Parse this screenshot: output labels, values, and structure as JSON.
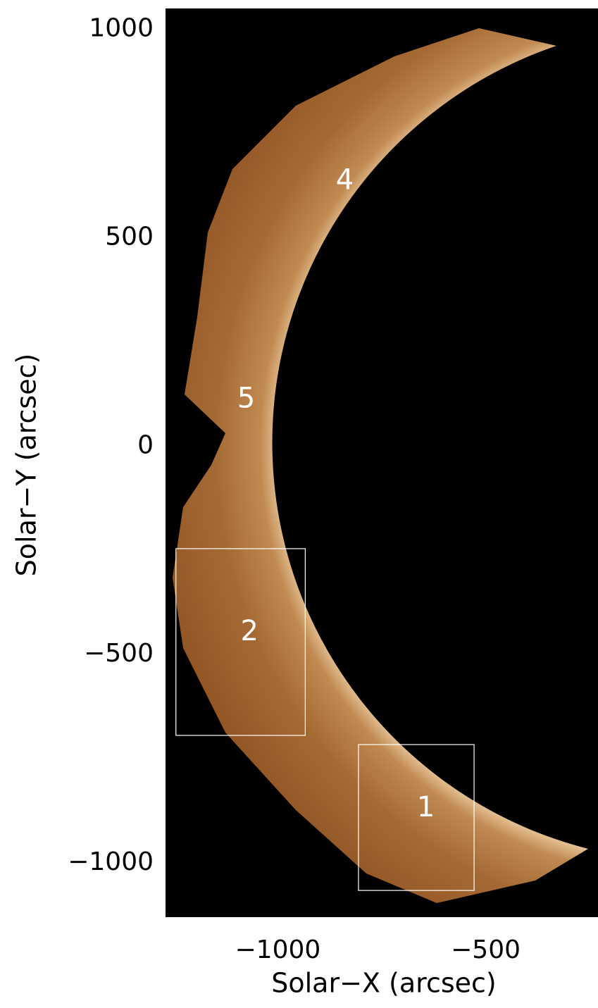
{
  "chart_data": {
    "type": "image",
    "xlabel": "Solar−X (arcsec)",
    "ylabel": "Solar−Y (arcsec)",
    "xlim": [
      -1270,
      -230
    ],
    "ylim": [
      -1130,
      1050
    ],
    "xticks": [
      {
        "value": -1000,
        "label": "−1000"
      },
      {
        "value": -500,
        "label": "−500"
      }
    ],
    "yticks": [
      1000,
      500,
      0,
      {
        "value": -500,
        "label": "−500"
      },
      {
        "value": -1000,
        "label": "−1000"
      }
    ],
    "boxes": [
      {
        "x": [
          -1245,
          -934
        ],
        "y": [
          -694,
          -246
        ],
        "color": "#ffffff"
      },
      {
        "x": [
          -806,
          -528
        ],
        "y": [
          -1066,
          -716
        ],
        "color": "#ffffff"
      }
    ],
    "annotations": [
      {
        "text": "4",
        "x": -839,
        "y": 635
      },
      {
        "text": "5",
        "x": -1076,
        "y": 111
      },
      {
        "text": "2",
        "x": -1068,
        "y": -447
      },
      {
        "text": "1",
        "x": -644,
        "y": -870
      }
    ]
  }
}
